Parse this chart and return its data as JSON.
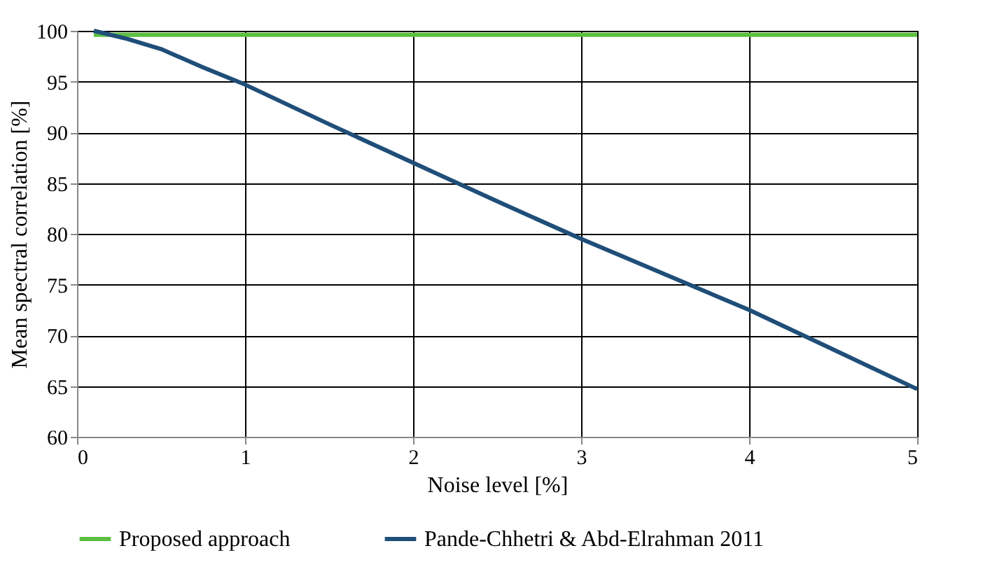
{
  "chart_data": {
    "type": "line",
    "xlabel": "Noise level [%]",
    "ylabel": "Mean spectral correlation [%]",
    "xlim": [
      0,
      5
    ],
    "xticks": [
      0,
      1,
      2,
      3,
      4,
      5
    ],
    "ylim": [
      60,
      100
    ],
    "yticks": [
      60,
      65,
      70,
      75,
      80,
      85,
      90,
      95,
      100
    ],
    "grid": true,
    "legend": "bottom",
    "marker": "none",
    "line_style": "solid",
    "series": [
      {
        "name": "Proposed approach",
        "color": "#5bbf3f",
        "x": [
          0.1,
          1,
          2,
          3,
          4,
          5
        ],
        "values": [
          99.6,
          99.6,
          99.6,
          99.6,
          99.6,
          99.6
        ]
      },
      {
        "name": "Pande-Chhetri & Abd-Elrahman 2011",
        "color": "#1f4e79",
        "x": [
          0.1,
          0.3,
          0.5,
          0.75,
          1,
          1.5,
          2,
          2.5,
          3,
          3.5,
          4,
          4.5,
          5
        ],
        "values": [
          100,
          99.2,
          98.2,
          96.4,
          94.7,
          90.8,
          87,
          83.2,
          79.5,
          76,
          72.5,
          68.6,
          64.7
        ]
      }
    ]
  }
}
